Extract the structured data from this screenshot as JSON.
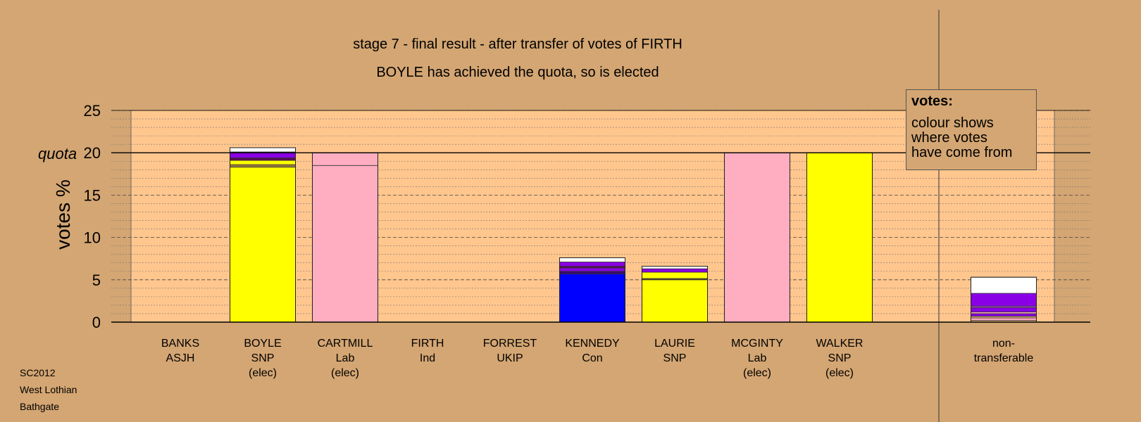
{
  "title_line1": "stage 7 - final result - after transfer of votes of FIRTH",
  "title_line2": "BOYLE has achieved the quota, so is elected",
  "legend": {
    "title": "votes:",
    "text_line1": "colour shows",
    "text_line2": "where votes",
    "text_line3": "have come from"
  },
  "footer": {
    "line1": "SC2012",
    "line2": "West Lothian",
    "line3": "Bathgate"
  },
  "quota_label": "quota",
  "colors": {
    "background": "#d4a673",
    "plot_area": "#ffc68d",
    "snp": "#ffff00",
    "lab": "#ffadc0",
    "con": "#0000ff",
    "other": "#8a00e6",
    "white": "#ffffff"
  },
  "candidates": [
    {
      "name": "BANKS",
      "party": "ASJH",
      "status": ""
    },
    {
      "name": "BOYLE",
      "party": "SNP",
      "status": "(elec)"
    },
    {
      "name": "CARTMILL",
      "party": "Lab",
      "status": "(elec)"
    },
    {
      "name": "FIRTH",
      "party": "Ind",
      "status": ""
    },
    {
      "name": "FORREST",
      "party": "UKIP",
      "status": ""
    },
    {
      "name": "KENNEDY",
      "party": "Con",
      "status": ""
    },
    {
      "name": "LAURIE",
      "party": "SNP",
      "status": ""
    },
    {
      "name": "MCGINTY",
      "party": "Lab",
      "status": "(elec)"
    },
    {
      "name": "WALKER",
      "party": "SNP",
      "status": "(elec)"
    },
    {
      "name": "non-",
      "party": "transferable",
      "status": ""
    }
  ],
  "chart_data": {
    "type": "bar",
    "stacked": true,
    "ylabel": "votes %",
    "ylim": [
      0,
      25
    ],
    "yticks": [
      0,
      5,
      10,
      15,
      20,
      25
    ],
    "quota": 20,
    "categories": [
      "BANKS",
      "BOYLE",
      "CARTMILL",
      "FIRTH",
      "FORREST",
      "KENNEDY",
      "LAURIE",
      "MCGINTY",
      "WALKER",
      "non-transferable"
    ],
    "bars": [
      {
        "category": "BANKS",
        "segments": []
      },
      {
        "category": "BOYLE",
        "segments": [
          {
            "color": "#ffff00",
            "value": 18.3
          },
          {
            "color": "#9b7a3a",
            "value": 0.3
          },
          {
            "color": "#ffff00",
            "value": 0.5
          },
          {
            "color": "#5a0a5a",
            "value": 0.3
          },
          {
            "color": "#8a00e6",
            "value": 0.7
          },
          {
            "color": "#ffffff",
            "value": 0.5
          }
        ]
      },
      {
        "category": "CARTMILL",
        "segments": [
          {
            "color": "#ffadc0",
            "value": 18.5
          },
          {
            "color": "#ffadc0",
            "value": 1.5
          }
        ]
      },
      {
        "category": "FIRTH",
        "segments": []
      },
      {
        "category": "FORREST",
        "segments": []
      },
      {
        "category": "KENNEDY",
        "segments": [
          {
            "color": "#0000ff",
            "value": 5.7
          },
          {
            "color": "#3a0a6a",
            "value": 0.3
          },
          {
            "color": "#8a00e6",
            "value": 0.4
          },
          {
            "color": "#5a0a5a",
            "value": 0.2
          },
          {
            "color": "#8a00e6",
            "value": 0.5
          },
          {
            "color": "#ffffff",
            "value": 0.5
          }
        ]
      },
      {
        "category": "LAURIE",
        "segments": [
          {
            "color": "#ffff00",
            "value": 5.0
          },
          {
            "color": "#5a4a1a",
            "value": 0.15
          },
          {
            "color": "#ffff00",
            "value": 0.75
          },
          {
            "color": "#8a00e6",
            "value": 0.4
          },
          {
            "color": "#ffffff",
            "value": 0.3
          }
        ]
      },
      {
        "category": "MCGINTY",
        "segments": [
          {
            "color": "#ffadc0",
            "value": 20
          }
        ]
      },
      {
        "category": "WALKER",
        "segments": [
          {
            "color": "#ffff00",
            "value": 20
          }
        ]
      },
      {
        "category": "non-transferable",
        "segments": [
          {
            "color": "#d4a673",
            "value": 0.2
          },
          {
            "color": "#ffadc0",
            "value": 0.3
          },
          {
            "color": "#d4a673",
            "value": 0.2
          },
          {
            "color": "#8a00e6",
            "value": 0.3
          },
          {
            "color": "#ffadc0",
            "value": 0.2
          },
          {
            "color": "#8a00e6",
            "value": 0.5
          },
          {
            "color": "#a04ac0",
            "value": 0.2
          },
          {
            "color": "#8a00e6",
            "value": 1.5
          },
          {
            "color": "#ffffff",
            "value": 1.9
          }
        ]
      }
    ]
  }
}
